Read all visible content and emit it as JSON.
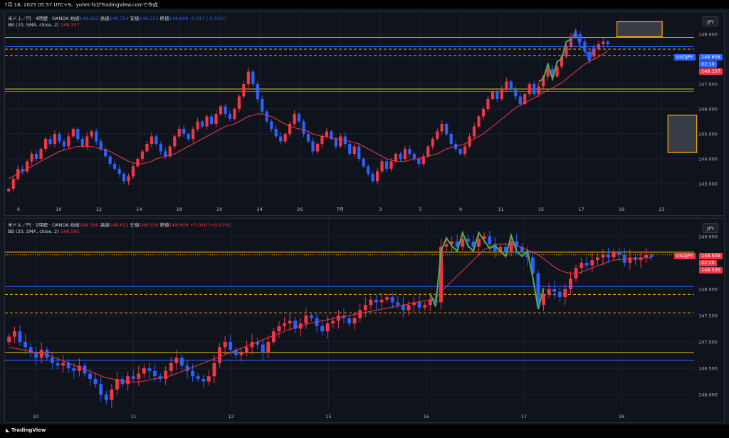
{
  "header": {
    "title": "7月 18, 2025 05:57 UTC+9、yohei-fxがTradingView.comで作成"
  },
  "footer": {
    "logo_text": "TradingView"
  },
  "colors": {
    "up": "#f23645",
    "down": "#2962ff",
    "bb": "#f23645",
    "hline_orange": "#f7a600",
    "hline_blue": "#2962ff",
    "hline_yellow": "#e8c800",
    "green_wave": "#4caf50",
    "blue_wave": "#2962ff"
  },
  "panes": [
    {
      "id": "h4",
      "legend": {
        "symbol": "米ドル／円 · 4時間 · OANDA",
        "open_label": "始値",
        "open": "148.623",
        "high_label": "高値",
        "high": "148.754",
        "low_label": "安値",
        "low": "148.552",
        "close_label": "終値",
        "close": "148.608",
        "change": "-0.017 (-0.01%)",
        "bb_label": "BB (20, SMA, close, 2)",
        "bb_value": "148.337"
      },
      "currency_button": "JPY",
      "price_tag": {
        "symbol": "USDJPY",
        "price": "148.608",
        "countdown": "02:10",
        "bb": "148.337"
      }
    },
    {
      "id": "h1",
      "legend": {
        "symbol": "米ドル／円 · 1時間 · OANDA",
        "open_label": "始値",
        "open": "148.590",
        "high_label": "高値",
        "high": "148.622",
        "low_label": "安値",
        "low": "148.556",
        "close_label": "終値",
        "close": "148.608",
        "change": "+0.019 (+0.01%)",
        "bb_label": "BB (20, SMA, close, 2)",
        "bb_value": "148.595"
      },
      "currency_button": "JPY",
      "price_tag": {
        "symbol": "USDJPY",
        "price": "148.608",
        "countdown": "02:10",
        "bb": "148.595"
      }
    }
  ],
  "chart_data": [
    {
      "type": "candlestick",
      "timeframe": "4時間",
      "ylim": [
        142.4,
        149.6
      ],
      "y_ticks": [
        "149.000",
        "148.000",
        "147.000",
        "146.000",
        "145.000",
        "144.000",
        "143.000"
      ],
      "y_tick_values": [
        149,
        148,
        147,
        146,
        145,
        144,
        143
      ],
      "x_ticks": [
        "6",
        "10",
        "12",
        "14",
        "18",
        "20",
        "24",
        "26",
        "7月",
        "3",
        "5",
        "9",
        "11",
        "15",
        "17",
        "19",
        "23"
      ],
      "closes": [
        142.8,
        143.2,
        143.6,
        143.5,
        143.9,
        144.2,
        144.0,
        144.4,
        144.8,
        144.6,
        145.0,
        144.7,
        144.5,
        144.9,
        145.2,
        144.8,
        144.5,
        144.9,
        145.1,
        144.7,
        144.4,
        144.1,
        143.8,
        143.6,
        143.4,
        143.1,
        143.3,
        143.7,
        144.0,
        144.3,
        144.6,
        144.9,
        144.6,
        144.3,
        144.1,
        144.5,
        144.9,
        145.2,
        145.0,
        144.8,
        145.2,
        145.5,
        145.3,
        145.7,
        145.4,
        145.8,
        146.1,
        145.8,
        145.6,
        146.0,
        146.5,
        147.0,
        147.5,
        147.0,
        146.4,
        145.9,
        145.5,
        145.2,
        144.9,
        144.7,
        145.0,
        145.4,
        145.8,
        145.5,
        145.0,
        144.7,
        144.3,
        144.6,
        144.9,
        145.1,
        144.8,
        144.5,
        144.9,
        144.6,
        144.2,
        144.5,
        144.0,
        143.7,
        143.4,
        143.1,
        143.5,
        143.9,
        143.6,
        143.9,
        144.2,
        144.0,
        144.4,
        144.2,
        144.0,
        143.8,
        144.1,
        144.5,
        144.8,
        145.1,
        145.4,
        145.0,
        144.6,
        144.4,
        144.2,
        144.5,
        144.9,
        145.3,
        145.7,
        146.0,
        146.4,
        146.7,
        146.4,
        146.8,
        147.1,
        146.8,
        146.5,
        146.2,
        146.6,
        147.0,
        146.6,
        146.9,
        147.3,
        147.6,
        147.3,
        147.7,
        148.1,
        148.5,
        148.9,
        149.0,
        148.7,
        148.3,
        148.1,
        148.4,
        148.6,
        148.7,
        148.6
      ],
      "bb_mid": [
        143.2,
        143.3,
        143.4,
        143.5,
        143.6,
        143.7,
        143.8,
        143.9,
        144.0,
        144.1,
        144.2,
        144.3,
        144.35,
        144.4,
        144.45,
        144.5,
        144.5,
        144.5,
        144.5,
        144.45,
        144.4,
        144.35,
        144.3,
        144.2,
        144.1,
        144.0,
        143.9,
        143.85,
        143.8,
        143.8,
        143.85,
        143.9,
        144.0,
        144.05,
        144.1,
        144.15,
        144.2,
        144.3,
        144.4,
        144.5,
        144.6,
        144.7,
        144.8,
        144.9,
        145.0,
        145.1,
        145.2,
        145.3,
        145.35,
        145.4,
        145.5,
        145.6,
        145.7,
        145.75,
        145.8,
        145.8,
        145.75,
        145.7,
        145.6,
        145.5,
        145.4,
        145.3,
        145.25,
        145.2,
        145.15,
        145.1,
        145.0,
        144.95,
        144.9,
        144.9,
        144.85,
        144.8,
        144.8,
        144.75,
        144.7,
        144.65,
        144.6,
        144.5,
        144.4,
        144.3,
        144.2,
        144.1,
        144.0,
        143.95,
        143.9,
        143.9,
        143.9,
        143.95,
        144.0,
        144.0,
        144.05,
        144.1,
        144.15,
        144.2,
        144.3,
        144.4,
        144.45,
        144.5,
        144.55,
        144.6,
        144.7,
        144.8,
        144.9,
        145.0,
        145.15,
        145.3,
        145.45,
        145.6,
        145.75,
        145.9,
        146.05,
        146.15,
        146.25,
        146.35,
        146.45,
        146.55,
        146.65,
        146.75,
        146.85,
        146.95,
        147.05,
        147.2,
        147.35,
        147.5,
        147.65,
        147.8,
        147.9,
        148.0,
        148.1,
        148.2,
        148.337
      ],
      "horizontal_levels": [
        {
          "price": 148.87,
          "color": "orange",
          "style": "solid"
        },
        {
          "price": 148.5,
          "color": "blue",
          "style": "solid"
        },
        {
          "price": 148.4,
          "color": "orange",
          "style": "dashed"
        },
        {
          "price": 148.15,
          "color": "orange",
          "style": "dashed"
        },
        {
          "price": 146.8,
          "color": "yellow",
          "style": "solid"
        },
        {
          "price": 146.7,
          "color": "blue",
          "style": "solid"
        }
      ],
      "zones": [
        {
          "price_top": 149.5,
          "price_bottom": 148.9,
          "x_frac_left": 0.851,
          "x_frac_right": 0.914
        },
        {
          "price_top": 145.75,
          "price_bottom": 144.25,
          "x_frac_left": 0.922,
          "x_frac_right": 0.962
        }
      ]
    },
    {
      "type": "candlestick",
      "timeframe": "1時間",
      "ylim": [
        145.8,
        149.2
      ],
      "y_ticks": [
        "149.000",
        "148.000",
        "147.500",
        "147.000",
        "146.500",
        "146.000"
      ],
      "y_tick_values": [
        149.0,
        148.0,
        147.5,
        147.0,
        146.5,
        146.0
      ],
      "x_ticks": [
        "10",
        "11",
        "12",
        "15",
        "16",
        "17",
        "18"
      ],
      "closes": [
        147.1,
        147.2,
        147.0,
        146.9,
        146.8,
        146.7,
        146.85,
        146.7,
        146.6,
        146.55,
        146.6,
        146.5,
        146.45,
        146.55,
        146.4,
        146.3,
        146.2,
        146.0,
        145.9,
        146.1,
        146.3,
        146.2,
        146.35,
        146.3,
        146.4,
        146.5,
        146.45,
        146.35,
        146.3,
        146.45,
        146.6,
        146.7,
        146.55,
        146.45,
        146.35,
        146.3,
        146.25,
        146.35,
        146.6,
        146.9,
        147.0,
        146.85,
        146.75,
        146.8,
        146.9,
        147.0,
        146.95,
        146.8,
        147.0,
        147.2,
        147.3,
        147.35,
        147.4,
        147.25,
        147.35,
        147.5,
        147.45,
        147.3,
        147.2,
        147.35,
        147.4,
        147.5,
        147.45,
        147.35,
        147.45,
        147.6,
        147.7,
        147.8,
        147.75,
        147.8,
        147.85,
        147.75,
        147.7,
        147.6,
        147.7,
        147.75,
        147.65,
        147.7,
        147.8,
        147.75,
        148.8,
        148.85,
        148.9,
        148.8,
        148.95,
        148.9,
        148.8,
        148.95,
        149.0,
        148.85,
        148.7,
        148.8,
        148.7,
        148.9,
        148.8,
        148.7,
        148.6,
        148.3,
        147.7,
        147.9,
        148.0,
        147.95,
        147.85,
        148.0,
        148.2,
        148.4,
        148.5,
        148.45,
        148.55,
        148.6,
        148.65,
        148.6,
        148.7,
        148.65,
        148.5,
        148.6,
        148.55,
        148.6,
        148.65,
        148.608
      ],
      "bb_mid": [
        146.9,
        146.88,
        146.86,
        146.84,
        146.82,
        146.8,
        146.78,
        146.75,
        146.72,
        146.68,
        146.64,
        146.6,
        146.56,
        146.52,
        146.48,
        146.44,
        146.4,
        146.36,
        146.32,
        146.3,
        146.28,
        146.26,
        146.24,
        146.24,
        146.24,
        146.26,
        146.28,
        146.3,
        146.32,
        146.34,
        146.36,
        146.4,
        146.44,
        146.48,
        146.52,
        146.56,
        146.6,
        146.64,
        146.68,
        146.72,
        146.76,
        146.8,
        146.84,
        146.88,
        146.92,
        146.96,
        147.0,
        147.04,
        147.08,
        147.12,
        147.16,
        147.2,
        147.24,
        147.27,
        147.3,
        147.33,
        147.36,
        147.38,
        147.4,
        147.42,
        147.44,
        147.46,
        147.48,
        147.5,
        147.52,
        147.54,
        147.56,
        147.58,
        147.6,
        147.62,
        147.64,
        147.66,
        147.68,
        147.7,
        147.72,
        147.74,
        147.76,
        147.78,
        147.8,
        147.82,
        147.95,
        148.05,
        148.15,
        148.25,
        148.35,
        148.45,
        148.55,
        148.65,
        148.75,
        148.8,
        148.85,
        148.85,
        148.85,
        148.85,
        148.82,
        148.78,
        148.74,
        148.7,
        148.65,
        148.58,
        148.5,
        148.42,
        148.36,
        148.32,
        148.3,
        148.3,
        148.32,
        148.36,
        148.4,
        148.44,
        148.48,
        148.52,
        148.55,
        148.56,
        148.57,
        148.58,
        148.59,
        148.59,
        148.595,
        148.595
      ],
      "horizontal_levels": [
        {
          "price": 148.7,
          "color": "orange",
          "style": "solid"
        },
        {
          "price": 148.65,
          "color": "orange",
          "style": "dotted"
        },
        {
          "price": 148.05,
          "color": "blue",
          "style": "solid"
        },
        {
          "price": 147.9,
          "color": "orange",
          "style": "dashed"
        },
        {
          "price": 147.55,
          "color": "orange",
          "style": "dashed"
        },
        {
          "price": 146.8,
          "color": "yellow",
          "style": "solid"
        },
        {
          "price": 146.65,
          "color": "blue",
          "style": "solid"
        }
      ]
    }
  ]
}
